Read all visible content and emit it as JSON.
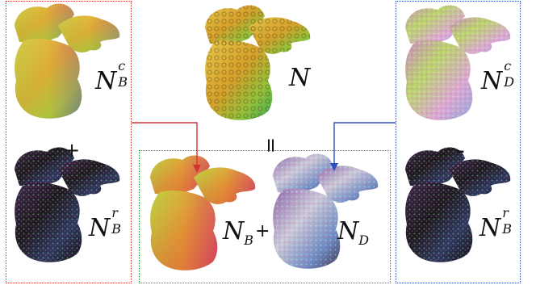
{
  "labels": {
    "nbc": {
      "base": "N",
      "sup": "c",
      "sub": "B"
    },
    "n": {
      "base": "N"
    },
    "ndc": {
      "base": "N",
      "sup": "c",
      "sub": "D"
    },
    "nbr_left": {
      "base": "N",
      "sup": "r",
      "sub": "B"
    },
    "nb": {
      "base": "N",
      "sub": "B"
    },
    "nd": {
      "base": "N",
      "sub": "D"
    },
    "nbr_right": {
      "base": "N",
      "sup": "r",
      "sub": "B"
    }
  },
  "operators": {
    "plus_left": "+",
    "equals": "=",
    "minus_right": "-",
    "plus_middle": "+"
  },
  "colors": {
    "red": "#d33333",
    "blue": "#2a4fbf",
    "green": "#2aa52a"
  }
}
